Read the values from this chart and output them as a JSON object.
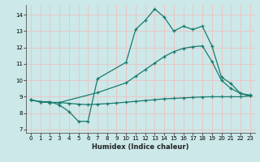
{
  "xlabel": "Humidex (Indice chaleur)",
  "bg_color": "#cce8e8",
  "grid_color": "#e8c8c8",
  "line_color": "#1a7a6e",
  "xlim": [
    -0.5,
    23.5
  ],
  "ylim": [
    6.8,
    14.6
  ],
  "yticks": [
    7,
    8,
    9,
    10,
    11,
    12,
    13,
    14
  ],
  "xticks": [
    0,
    1,
    2,
    3,
    4,
    5,
    6,
    7,
    8,
    9,
    10,
    11,
    12,
    13,
    14,
    15,
    16,
    17,
    18,
    19,
    20,
    21,
    22,
    23
  ],
  "line1_x": [
    0,
    1,
    2,
    3,
    4,
    5,
    6,
    7,
    10,
    11,
    12,
    13,
    14,
    15,
    16,
    17,
    18,
    19,
    20,
    21,
    22,
    23
  ],
  "line1_y": [
    8.8,
    8.7,
    8.7,
    8.5,
    8.1,
    7.5,
    7.5,
    10.1,
    11.1,
    13.1,
    13.65,
    14.35,
    13.85,
    13.0,
    13.3,
    13.1,
    13.3,
    12.1,
    10.2,
    9.8,
    9.2,
    9.1
  ],
  "line2_x": [
    0,
    1,
    2,
    3,
    7,
    10,
    11,
    12,
    13,
    14,
    15,
    16,
    17,
    18,
    19,
    20,
    21,
    22,
    23
  ],
  "line2_y": [
    8.8,
    8.7,
    8.65,
    8.65,
    9.25,
    9.85,
    10.25,
    10.65,
    11.05,
    11.45,
    11.75,
    11.95,
    12.05,
    12.1,
    11.15,
    10.0,
    9.5,
    9.2,
    9.05
  ],
  "line3_x": [
    0,
    1,
    2,
    3,
    4,
    5,
    6,
    7,
    8,
    9,
    10,
    11,
    12,
    13,
    14,
    15,
    16,
    17,
    18,
    19,
    20,
    21,
    22,
    23
  ],
  "line3_y": [
    8.8,
    8.7,
    8.65,
    8.65,
    8.6,
    8.55,
    8.52,
    8.55,
    8.58,
    8.62,
    8.67,
    8.72,
    8.77,
    8.82,
    8.87,
    8.9,
    8.93,
    8.96,
    8.99,
    9.0,
    9.0,
    9.0,
    9.0,
    9.05
  ]
}
